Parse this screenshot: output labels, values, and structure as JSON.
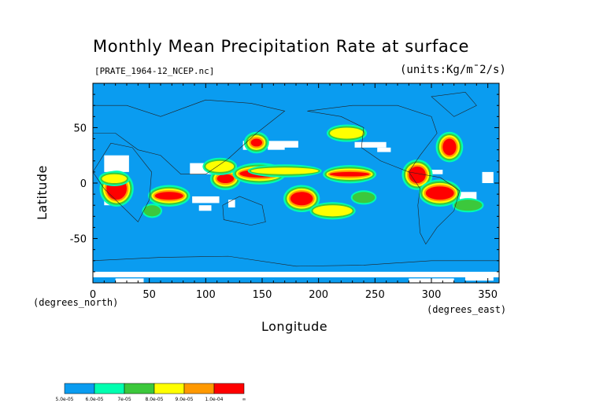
{
  "chart_data": {
    "type": "heatmap",
    "title": "Monthly Mean Precipitation Rate at surface",
    "subtitle": "[PRATE_1964-12_NCEP.nc]",
    "units": "(units:Kg/m¯2/s)",
    "xlabel": "Longitude",
    "ylabel": "Latitude",
    "x_unit": "(degrees_east)",
    "y_unit": "(degrees_north)",
    "xlim": [
      0,
      360
    ],
    "ylim": [
      -90,
      90
    ],
    "x_ticks": [
      0,
      50,
      100,
      150,
      200,
      250,
      300,
      350
    ],
    "y_ticks": [
      -50,
      0,
      50
    ],
    "background_color": "#0a9cf0",
    "missing_color": "#ffffff",
    "colorbar": {
      "labels": [
        "5.0e-05",
        "6.0e-05",
        "7e-05",
        "8.0e-05",
        "9.0e-05",
        "1.0e-04",
        "∞"
      ],
      "colors": [
        "#0a9cf0",
        "#00ffb0",
        "#3cc83c",
        "#ffff00",
        "#ff9900",
        "#ff0000"
      ]
    },
    "regions": [
      {
        "lon": [
          12,
          30
        ],
        "lat": [
          -15,
          5
        ],
        "level": 5
      },
      {
        "lon": [
          55,
          80
        ],
        "lat": [
          -15,
          -8
        ],
        "level": 5
      },
      {
        "lon": [
          110,
          125
        ],
        "lat": [
          0,
          8
        ],
        "level": 5
      },
      {
        "lon": [
          130,
          165
        ],
        "lat": [
          5,
          12
        ],
        "level": 5
      },
      {
        "lon": [
          175,
          195
        ],
        "lat": [
          -20,
          -8
        ],
        "level": 5
      },
      {
        "lon": [
          210,
          245
        ],
        "lat": [
          6,
          10
        ],
        "level": 5
      },
      {
        "lon": [
          280,
          295
        ],
        "lat": [
          0,
          15
        ],
        "level": 5
      },
      {
        "lon": [
          295,
          320
        ],
        "lat": [
          -15,
          -3
        ],
        "level": 5
      },
      {
        "lon": [
          310,
          322
        ],
        "lat": [
          25,
          40
        ],
        "level": 5
      },
      {
        "lon": [
          140,
          150
        ],
        "lat": [
          33,
          40
        ],
        "level": 5
      }
    ]
  }
}
